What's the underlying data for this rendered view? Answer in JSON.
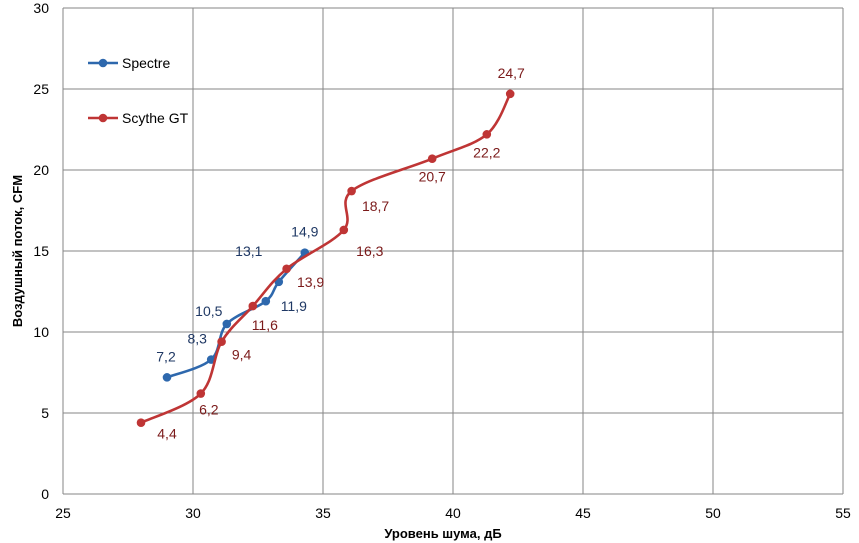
{
  "chart_data": {
    "type": "scatter",
    "xlabel": "Уровень шума, дБ",
    "ylabel": "Воздушный поток, CFM",
    "xlim": [
      25,
      55
    ],
    "ylim": [
      0,
      30
    ],
    "xticks": [
      "25",
      "30",
      "35",
      "40",
      "45",
      "50",
      "55"
    ],
    "yticks": [
      "0",
      "5",
      "10",
      "15",
      "20",
      "25",
      "30"
    ],
    "grid": true,
    "legend_position": "top-left",
    "smoothed_lines": true,
    "series": [
      {
        "name": "Spectre",
        "color": "#2e68ad",
        "label_color": "#1f3864",
        "points": [
          {
            "x": 29.0,
            "y": 7.2,
            "label": "7,2"
          },
          {
            "x": 30.7,
            "y": 8.3,
            "label": "8,3"
          },
          {
            "x": 31.3,
            "y": 10.5,
            "label": "10,5"
          },
          {
            "x": 32.8,
            "y": 11.9,
            "label": "11,9"
          },
          {
            "x": 33.3,
            "y": 13.1,
            "label": "13,1"
          },
          {
            "x": 34.3,
            "y": 14.9,
            "label": "14,9"
          }
        ]
      },
      {
        "name": "Scythe GT",
        "color": "#bf3535",
        "label_color": "#7b1a1a",
        "points": [
          {
            "x": 28.0,
            "y": 4.4,
            "label": "4,4"
          },
          {
            "x": 30.3,
            "y": 6.2,
            "label": "6,2"
          },
          {
            "x": 31.1,
            "y": 9.4,
            "label": "9,4"
          },
          {
            "x": 32.3,
            "y": 11.6,
            "label": "11,6"
          },
          {
            "x": 33.6,
            "y": 13.9,
            "label": "13,9"
          },
          {
            "x": 35.8,
            "y": 16.3,
            "label": "16,3"
          },
          {
            "x": 36.1,
            "y": 18.7,
            "label": "18,7"
          },
          {
            "x": 39.2,
            "y": 20.7,
            "label": "20,7"
          },
          {
            "x": 41.3,
            "y": 22.2,
            "label": "22,2"
          },
          {
            "x": 42.2,
            "y": 24.7,
            "label": "24,7"
          }
        ]
      }
    ]
  }
}
